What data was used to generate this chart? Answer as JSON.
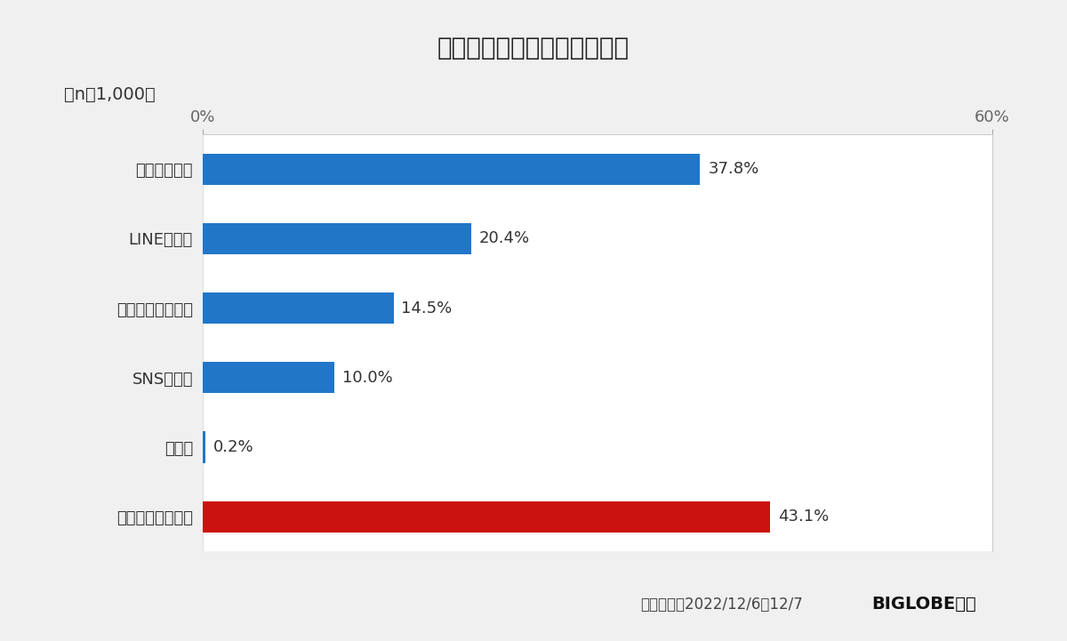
{
  "title": "年賀状の送り方（複数回答）",
  "n_label": "（n＝1,000）",
  "categories": [
    "はがきで送る",
    "LINEで送る",
    "電子メールで送る",
    "SNSで送る",
    "その他",
    "年賀状は送らない"
  ],
  "values": [
    37.8,
    20.4,
    14.5,
    10.0,
    0.2,
    43.1
  ],
  "bar_colors": [
    "#2176C8",
    "#2176C8",
    "#2176C8",
    "#2176C8",
    "#2176C8",
    "#CC1111"
  ],
  "value_labels": [
    "37.8%",
    "20.4%",
    "14.5%",
    "10.0%",
    "0.2%",
    "43.1%"
  ],
  "xlim": [
    0,
    60
  ],
  "xtick_labels": [
    "0%",
    "60%"
  ],
  "xtick_positions": [
    0,
    60
  ],
  "footer_left": "調査期間：2022/12/6〜12/7",
  "footer_right": "BIGLOBE調べ",
  "background_color": "#f0f0f0",
  "plot_background_color": "#ffffff",
  "title_fontsize": 20,
  "label_fontsize": 13,
  "value_fontsize": 13,
  "bar_height": 0.45
}
